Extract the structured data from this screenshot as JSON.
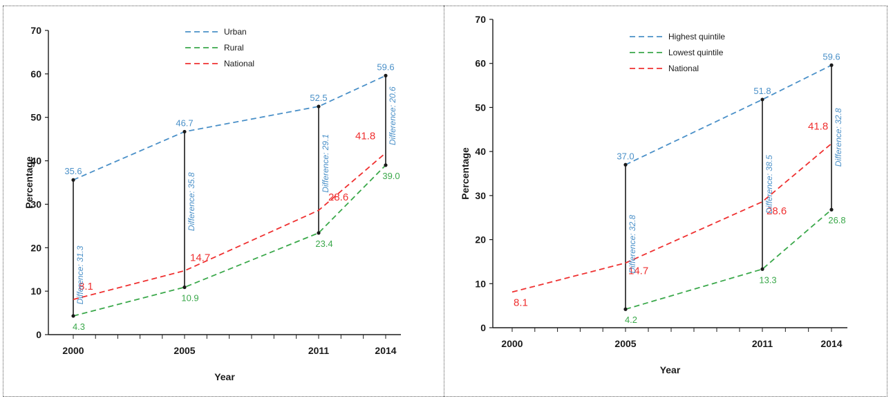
{
  "colors": {
    "blue": "#4a90c8",
    "green": "#3aa84a",
    "red": "#ef3030",
    "axis": "#1a1a1a",
    "dark": "#1a1a1a"
  },
  "chart_data": [
    {
      "type": "line",
      "title": "",
      "xlabel": "Year",
      "ylabel": "Percentage",
      "x": [
        2000,
        2005,
        2011,
        2014
      ],
      "ylim": [
        0,
        70
      ],
      "yticks": [
        0,
        10,
        20,
        30,
        40,
        50,
        60,
        70
      ],
      "legend_position": "top",
      "series": [
        {
          "name": "Urban",
          "color": "blue",
          "values": [
            35.6,
            46.7,
            52.5,
            59.6
          ],
          "labels": [
            "35.6",
            "46.7",
            "52.5",
            "59.6"
          ]
        },
        {
          "name": "Rural",
          "color": "green",
          "values": [
            4.3,
            10.9,
            23.4,
            39.0
          ],
          "labels": [
            "4.3",
            "10.9",
            "23.4",
            "39.0"
          ]
        },
        {
          "name": "National",
          "color": "red",
          "values": [
            8.1,
            14.7,
            28.6,
            41.8
          ],
          "labels": [
            "8.1",
            "14.7",
            "28.6",
            "41.8"
          ]
        }
      ],
      "differences": [
        {
          "year": 2000,
          "top": 35.6,
          "bottom": 4.3,
          "text": "Difference:  31.3"
        },
        {
          "year": 2005,
          "top": 46.7,
          "bottom": 10.9,
          "text": "Difference:  35.8"
        },
        {
          "year": 2011,
          "top": 52.5,
          "bottom": 23.4,
          "text": "Difference:  29.1"
        },
        {
          "year": 2014,
          "top": 59.6,
          "bottom": 39.0,
          "text": "Difference:  20.6"
        }
      ]
    },
    {
      "type": "line",
      "title": "",
      "xlabel": "Year",
      "ylabel": "Percentage",
      "x": [
        2000,
        2005,
        2011,
        2014
      ],
      "ylim": [
        0,
        70
      ],
      "yticks": [
        0,
        10,
        20,
        30,
        40,
        50,
        60,
        70
      ],
      "legend_position": "top",
      "series": [
        {
          "name": "Highest quintile",
          "color": "blue",
          "values": [
            null,
            37.0,
            51.8,
            59.6
          ],
          "labels": [
            null,
            "37.0",
            "51.8",
            "59.6"
          ]
        },
        {
          "name": "Lowest quintile",
          "color": "green",
          "values": [
            null,
            4.2,
            13.3,
            26.8
          ],
          "labels": [
            null,
            "4.2",
            "13.3",
            "26.8"
          ]
        },
        {
          "name": "National",
          "color": "red",
          "values": [
            8.1,
            14.7,
            28.6,
            41.8
          ],
          "labels": [
            "8.1",
            "14.7",
            "28.6",
            "41.8"
          ]
        }
      ],
      "differences": [
        {
          "year": 2005,
          "top": 37.0,
          "bottom": 4.2,
          "text": "Difference:  32.8"
        },
        {
          "year": 2011,
          "top": 51.8,
          "bottom": 13.3,
          "text": "Difference:  38.5"
        },
        {
          "year": 2014,
          "top": 59.6,
          "bottom": 26.8,
          "text": "Difference:  32.8"
        }
      ]
    }
  ]
}
